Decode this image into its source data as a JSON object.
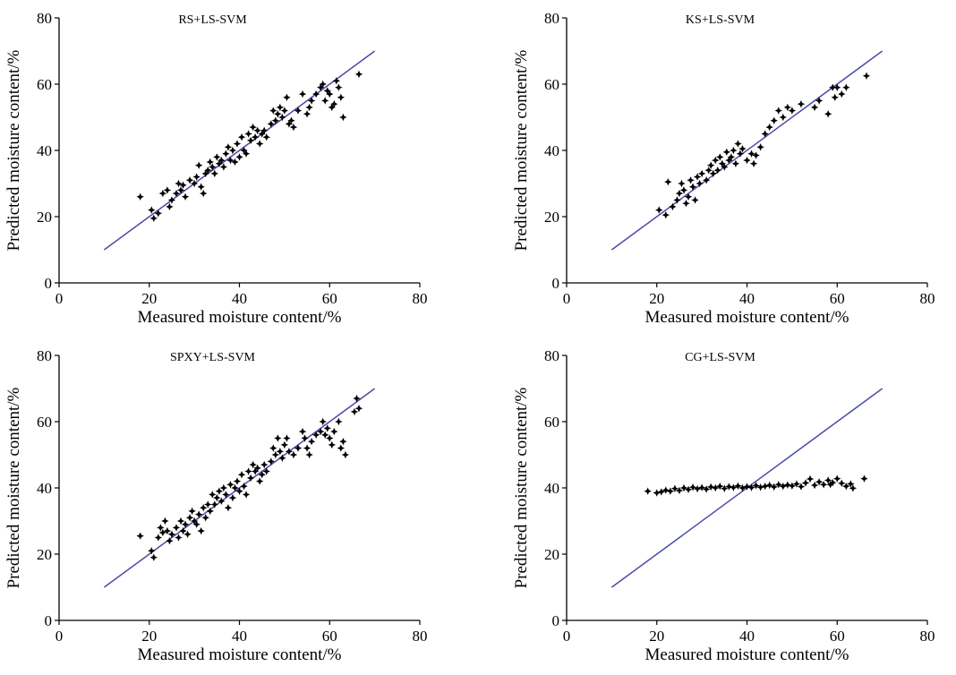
{
  "colors": {
    "reference_line": "#4a4aa8",
    "points": "#000000",
    "axis": "#000000"
  },
  "chart_data": [
    {
      "type": "scatter",
      "title": "RS+LS-SVM",
      "xlabel": "Measured moisture content/%",
      "ylabel": "Predicted moisture content/%",
      "xlim": [
        0,
        80
      ],
      "ylim": [
        0,
        80
      ],
      "xticks": [
        "0",
        "20",
        "40",
        "60",
        "80"
      ],
      "yticks": [
        "0",
        "20",
        "40",
        "60",
        "80"
      ],
      "reference_line": [
        [
          10,
          10
        ],
        [
          70,
          70
        ]
      ],
      "grid": false,
      "points": [
        [
          18,
          26
        ],
        [
          20.5,
          22
        ],
        [
          21,
          19.5
        ],
        [
          22,
          21
        ],
        [
          23,
          27
        ],
        [
          24,
          28
        ],
        [
          24.5,
          23
        ],
        [
          25,
          25
        ],
        [
          26,
          27
        ],
        [
          26.5,
          30
        ],
        [
          27,
          28
        ],
        [
          27.5,
          29.5
        ],
        [
          28,
          26
        ],
        [
          29,
          31
        ],
        [
          30,
          30
        ],
        [
          30.5,
          32
        ],
        [
          31,
          35.5
        ],
        [
          31.5,
          29
        ],
        [
          32,
          27
        ],
        [
          32.5,
          33
        ],
        [
          33,
          34
        ],
        [
          33.5,
          36.5
        ],
        [
          34,
          35
        ],
        [
          34.5,
          33
        ],
        [
          35,
          38
        ],
        [
          35.5,
          36
        ],
        [
          36,
          37
        ],
        [
          36.5,
          35
        ],
        [
          37,
          39
        ],
        [
          37.5,
          41
        ],
        [
          38,
          37
        ],
        [
          38.5,
          40
        ],
        [
          39,
          36.5
        ],
        [
          39.5,
          42
        ],
        [
          40,
          38
        ],
        [
          40.5,
          44
        ],
        [
          41,
          40
        ],
        [
          41.5,
          39
        ],
        [
          42,
          45
        ],
        [
          42.5,
          43
        ],
        [
          43,
          47
        ],
        [
          43.5,
          44
        ],
        [
          44,
          46
        ],
        [
          44.5,
          42
        ],
        [
          45,
          45
        ],
        [
          45.5,
          46
        ],
        [
          46,
          44
        ],
        [
          47,
          48
        ],
        [
          47.5,
          52
        ],
        [
          48,
          49
        ],
        [
          48.5,
          51
        ],
        [
          49,
          53
        ],
        [
          49.5,
          50
        ],
        [
          50,
          52
        ],
        [
          50.5,
          56
        ],
        [
          51,
          48
        ],
        [
          51.5,
          49
        ],
        [
          52,
          47
        ],
        [
          53,
          52
        ],
        [
          54,
          57
        ],
        [
          55,
          51
        ],
        [
          55.5,
          53
        ],
        [
          56,
          55
        ],
        [
          57,
          57
        ],
        [
          58,
          59
        ],
        [
          58.5,
          60
        ],
        [
          59,
          55
        ],
        [
          59.5,
          58
        ],
        [
          60,
          57
        ],
        [
          60.5,
          53
        ],
        [
          61,
          54
        ],
        [
          61.5,
          61
        ],
        [
          62,
          59
        ],
        [
          62.5,
          56
        ],
        [
          63,
          50
        ],
        [
          66.5,
          63
        ]
      ]
    },
    {
      "type": "scatter",
      "title": "KS+LS-SVM",
      "xlabel": "Measured moisture content/%",
      "ylabel": "Predicted moisture content/%",
      "xlim": [
        0,
        80
      ],
      "ylim": [
        0,
        80
      ],
      "xticks": [
        "0",
        "20",
        "40",
        "60",
        "80"
      ],
      "yticks": [
        "0",
        "20",
        "40",
        "60",
        "80"
      ],
      "reference_line": [
        [
          10,
          10
        ],
        [
          70,
          70
        ]
      ],
      "grid": false,
      "points": [
        [
          20.5,
          22
        ],
        [
          22,
          20.5
        ],
        [
          22.5,
          30.5
        ],
        [
          23.5,
          23
        ],
        [
          24.5,
          25
        ],
        [
          25,
          27
        ],
        [
          25.5,
          30
        ],
        [
          26,
          28
        ],
        [
          26.5,
          24
        ],
        [
          27,
          26
        ],
        [
          27.5,
          31
        ],
        [
          28,
          29
        ],
        [
          28.5,
          25
        ],
        [
          29,
          32
        ],
        [
          29.5,
          30
        ],
        [
          30,
          33
        ],
        [
          31,
          31
        ],
        [
          31.5,
          34
        ],
        [
          32,
          35.5
        ],
        [
          32.5,
          33
        ],
        [
          33,
          37
        ],
        [
          33.5,
          34
        ],
        [
          34,
          38
        ],
        [
          34.5,
          36
        ],
        [
          35,
          35
        ],
        [
          35.5,
          39.5
        ],
        [
          36,
          37
        ],
        [
          36.5,
          38
        ],
        [
          37,
          40
        ],
        [
          37.5,
          36
        ],
        [
          38,
          42
        ],
        [
          38.5,
          39
        ],
        [
          39,
          40.5
        ],
        [
          40,
          37
        ],
        [
          41,
          39
        ],
        [
          41.5,
          36
        ],
        [
          42,
          38.5
        ],
        [
          43,
          41
        ],
        [
          44,
          45
        ],
        [
          45,
          47
        ],
        [
          46,
          49
        ],
        [
          47,
          52
        ],
        [
          48,
          50
        ],
        [
          49,
          53
        ],
        [
          50,
          52
        ],
        [
          52,
          54
        ],
        [
          55,
          53
        ],
        [
          56,
          55
        ],
        [
          58,
          51
        ],
        [
          59,
          59
        ],
        [
          59.5,
          56
        ],
        [
          60,
          59
        ],
        [
          61,
          57
        ],
        [
          62,
          59
        ],
        [
          66.5,
          62.5
        ]
      ]
    },
    {
      "type": "scatter",
      "title": "SPXY+LS-SVM",
      "xlabel": "Measured moisture content/%",
      "ylabel": "Predicted moisture content/%",
      "xlim": [
        0,
        80
      ],
      "ylim": [
        0,
        80
      ],
      "xticks": [
        "0",
        "20",
        "40",
        "60",
        "80"
      ],
      "yticks": [
        "0",
        "20",
        "40",
        "60",
        "80"
      ],
      "reference_line": [
        [
          10,
          10
        ],
        [
          70,
          70
        ]
      ],
      "grid": false,
      "points": [
        [
          18,
          25.5
        ],
        [
          20.5,
          21
        ],
        [
          21,
          19
        ],
        [
          22,
          25
        ],
        [
          22.5,
          28
        ],
        [
          23,
          26.5
        ],
        [
          23.5,
          30
        ],
        [
          24,
          27
        ],
        [
          24.5,
          24
        ],
        [
          25,
          26
        ],
        [
          26,
          28
        ],
        [
          26.5,
          25
        ],
        [
          27,
          30
        ],
        [
          27.5,
          27
        ],
        [
          28,
          29
        ],
        [
          28.5,
          26
        ],
        [
          29,
          31
        ],
        [
          29.5,
          33
        ],
        [
          30,
          30
        ],
        [
          30.5,
          29
        ],
        [
          31,
          32
        ],
        [
          31.5,
          27
        ],
        [
          32,
          34
        ],
        [
          32.5,
          31
        ],
        [
          33,
          35
        ],
        [
          33.5,
          33
        ],
        [
          34,
          38
        ],
        [
          34.5,
          35
        ],
        [
          35,
          37
        ],
        [
          35.5,
          39
        ],
        [
          36,
          36
        ],
        [
          36.5,
          40
        ],
        [
          37,
          38
        ],
        [
          37.5,
          34
        ],
        [
          38,
          41
        ],
        [
          38.5,
          37
        ],
        [
          39,
          40
        ],
        [
          39.5,
          42
        ],
        [
          40,
          39
        ],
        [
          40.5,
          44
        ],
        [
          41,
          40.5
        ],
        [
          41.5,
          38
        ],
        [
          42,
          45
        ],
        [
          42.5,
          43
        ],
        [
          43,
          47
        ],
        [
          43.5,
          45
        ],
        [
          44,
          46
        ],
        [
          44.5,
          42
        ],
        [
          45,
          44
        ],
        [
          45.5,
          47
        ],
        [
          46,
          45
        ],
        [
          47,
          48
        ],
        [
          47.5,
          52
        ],
        [
          48,
          50
        ],
        [
          48.5,
          55
        ],
        [
          49,
          51
        ],
        [
          49.5,
          49
        ],
        [
          50,
          53
        ],
        [
          50.5,
          55
        ],
        [
          51,
          51
        ],
        [
          52,
          50
        ],
        [
          53,
          52
        ],
        [
          54,
          57
        ],
        [
          54.5,
          55
        ],
        [
          55,
          52
        ],
        [
          55.5,
          50
        ],
        [
          56,
          54
        ],
        [
          57,
          56
        ],
        [
          58,
          57
        ],
        [
          58.5,
          60
        ],
        [
          59,
          56
        ],
        [
          59.5,
          58
        ],
        [
          60,
          55
        ],
        [
          60.5,
          53
        ],
        [
          61,
          57
        ],
        [
          62,
          60
        ],
        [
          62.5,
          52
        ],
        [
          63,
          54
        ],
        [
          63.5,
          50
        ],
        [
          65.5,
          63
        ],
        [
          66,
          67
        ],
        [
          66.5,
          64
        ]
      ]
    },
    {
      "type": "scatter",
      "title": "CG+LS-SVM",
      "xlabel": "Measured moisture content/%",
      "ylabel": "Predicted moisture content/%",
      "xlim": [
        0,
        80
      ],
      "ylim": [
        0,
        80
      ],
      "xticks": [
        "0",
        "20",
        "40",
        "60",
        "80"
      ],
      "yticks": [
        "0",
        "20",
        "40",
        "60",
        "80"
      ],
      "reference_line": [
        [
          10,
          10
        ],
        [
          70,
          70
        ]
      ],
      "grid": false,
      "points": [
        [
          18,
          39
        ],
        [
          20,
          38.5
        ],
        [
          21,
          38.8
        ],
        [
          22,
          39.3
        ],
        [
          23,
          39
        ],
        [
          24,
          39.8
        ],
        [
          25,
          39.2
        ],
        [
          26,
          40
        ],
        [
          27,
          39.5
        ],
        [
          28,
          40.2
        ],
        [
          29,
          39.7
        ],
        [
          30,
          40.1
        ],
        [
          31,
          39.6
        ],
        [
          32,
          40.3
        ],
        [
          33,
          40
        ],
        [
          34,
          40.5
        ],
        [
          35,
          39.8
        ],
        [
          36,
          40.4
        ],
        [
          37,
          40.1
        ],
        [
          38,
          40.6
        ],
        [
          39,
          40
        ],
        [
          40,
          40.4
        ],
        [
          41,
          40.1
        ],
        [
          42,
          40.7
        ],
        [
          43,
          40.2
        ],
        [
          44,
          40.5
        ],
        [
          45,
          40.8
        ],
        [
          46,
          40.3
        ],
        [
          47,
          41
        ],
        [
          48,
          40.5
        ],
        [
          49,
          40.9
        ],
        [
          50,
          40.6
        ],
        [
          51,
          41.2
        ],
        [
          52,
          40.4
        ],
        [
          53,
          41.5
        ],
        [
          54,
          42.7
        ],
        [
          55,
          40.8
        ],
        [
          56,
          41.8
        ],
        [
          57,
          41
        ],
        [
          58,
          42.3
        ],
        [
          58.5,
          41
        ],
        [
          59,
          41.6
        ],
        [
          60,
          42.8
        ],
        [
          61,
          41.4
        ],
        [
          62,
          40.5
        ],
        [
          63,
          41.2
        ],
        [
          63.5,
          39.9
        ],
        [
          66,
          42.8
        ]
      ]
    }
  ]
}
